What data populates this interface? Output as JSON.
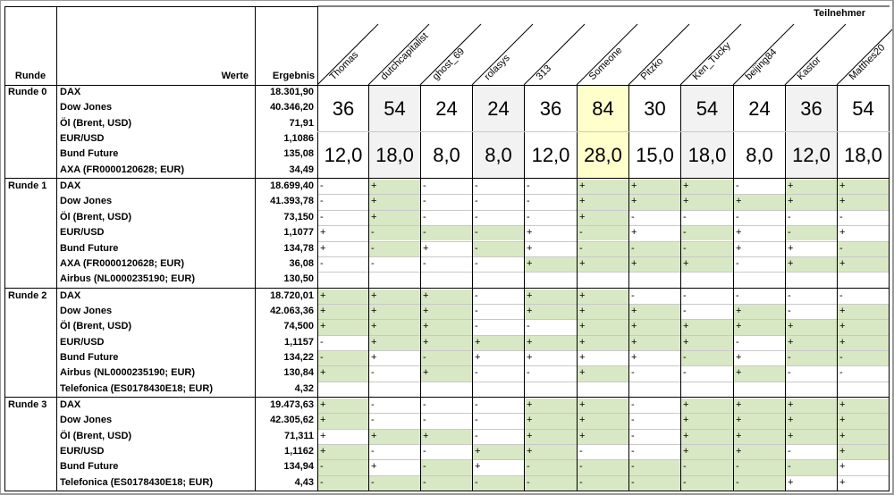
{
  "header": {
    "runde": "Runde",
    "werte": "Werte",
    "ergebnis": "Ergebnis",
    "teilnehmer": "Teilnehmer"
  },
  "participants": [
    "Thomas",
    "dutchcapitalist",
    "ghost_69",
    "rolasys",
    "313",
    "Someone",
    "Pitzko",
    "Ken_Tucky",
    "beijing84",
    "Kastor",
    "Matthes20"
  ],
  "colors": {
    "positive": "#d9e8c4",
    "highlight": "#ffffcc",
    "shaded": "#f2f2f2",
    "border": "#000000",
    "grid": "#c8c8c8"
  },
  "round0": {
    "label": "Runde 0",
    "rows": [
      {
        "name": "DAX",
        "value": "18.301,90"
      },
      {
        "name": "Dow Jones",
        "value": "40.346,20"
      },
      {
        "name": "Öl (Brent, USD)",
        "value": "71,91"
      },
      {
        "name": "EUR/USD",
        "value": "1,1086"
      },
      {
        "name": "Bund Future",
        "value": "135,08"
      },
      {
        "name": "AXA (FR0000120628; EUR)",
        "value": "34,49"
      }
    ],
    "points": [
      "36",
      "54",
      "24",
      "24",
      "36",
      "84",
      "30",
      "54",
      "24",
      "36",
      "54"
    ],
    "scores": [
      "12,0",
      "18,0",
      "8,0",
      "8,0",
      "12,0",
      "28,0",
      "15,0",
      "18,0",
      "8,0",
      "12,0",
      "18,0"
    ]
  },
  "rounds": [
    {
      "label": "Runde 1",
      "rows": [
        {
          "name": "DAX",
          "value": "18.699,40",
          "marks": [
            "-",
            "+",
            "-",
            "-",
            "-",
            "+",
            "+",
            "+",
            "-",
            "+",
            "+"
          ],
          "green": [
            0,
            1,
            0,
            0,
            0,
            1,
            1,
            1,
            0,
            1,
            1
          ]
        },
        {
          "name": "Dow Jones",
          "value": "41.393,78",
          "marks": [
            "-",
            "+",
            "-",
            "-",
            "-",
            "+",
            "+",
            "+",
            "+",
            "+",
            "+"
          ],
          "green": [
            0,
            1,
            0,
            0,
            0,
            1,
            1,
            1,
            1,
            1,
            1
          ]
        },
        {
          "name": "Öl (Brent, USD)",
          "value": "73,150",
          "marks": [
            "-",
            "+",
            "-",
            "-",
            "-",
            "+",
            "-",
            "-",
            "-",
            "-",
            "-"
          ],
          "green": [
            0,
            1,
            0,
            0,
            0,
            1,
            0,
            0,
            0,
            0,
            0
          ]
        },
        {
          "name": "EUR/USD",
          "value": "1,1077",
          "marks": [
            "+",
            "-",
            "-",
            "-",
            "+",
            "-",
            "+",
            "-",
            "+",
            "-",
            "+"
          ],
          "green": [
            0,
            1,
            1,
            1,
            0,
            1,
            0,
            1,
            0,
            1,
            0
          ]
        },
        {
          "name": "Bund Future",
          "value": "134,78",
          "marks": [
            "+",
            "-",
            "+",
            "-",
            "+",
            "-",
            "-",
            "-",
            "+",
            "+",
            "-"
          ],
          "green": [
            0,
            1,
            0,
            1,
            0,
            1,
            1,
            1,
            0,
            0,
            1
          ]
        },
        {
          "name": "AXA (FR0000120628; EUR)",
          "value": "36,08",
          "marks": [
            "-",
            "-",
            "-",
            "-",
            "+",
            "+",
            "+",
            "+",
            "-",
            "+",
            "+"
          ],
          "green": [
            0,
            0,
            0,
            0,
            1,
            1,
            1,
            1,
            0,
            1,
            1
          ]
        },
        {
          "name": "Airbus (NL0000235190; EUR)",
          "value": "130,50",
          "marks": null
        }
      ]
    },
    {
      "label": "Runde 2",
      "rows": [
        {
          "name": "DAX",
          "value": "18.720,01",
          "marks": [
            "+",
            "+",
            "+",
            "-",
            "+",
            "+",
            "-",
            "-",
            "-",
            "-",
            "-"
          ],
          "green": [
            1,
            1,
            1,
            0,
            1,
            1,
            0,
            0,
            0,
            0,
            0
          ]
        },
        {
          "name": "Dow Jones",
          "value": "42.063,36",
          "marks": [
            "+",
            "+",
            "+",
            "-",
            "+",
            "+",
            "+",
            "-",
            "+",
            "-",
            "+"
          ],
          "green": [
            1,
            1,
            1,
            0,
            1,
            1,
            1,
            0,
            1,
            0,
            1
          ]
        },
        {
          "name": "Öl (Brent, USD)",
          "value": "74,500",
          "marks": [
            "+",
            "+",
            "+",
            "-",
            "-",
            "+",
            "+",
            "+",
            "+",
            "+",
            "+"
          ],
          "green": [
            1,
            1,
            1,
            0,
            0,
            1,
            1,
            1,
            1,
            1,
            1
          ]
        },
        {
          "name": "EUR/USD",
          "value": "1,1157",
          "marks": [
            "-",
            "+",
            "+",
            "+",
            "+",
            "+",
            "+",
            "+",
            "-",
            "+",
            "+"
          ],
          "green": [
            0,
            1,
            1,
            1,
            1,
            1,
            1,
            1,
            0,
            1,
            1
          ]
        },
        {
          "name": "Bund Future",
          "value": "134,22",
          "marks": [
            "-",
            "+",
            "-",
            "+",
            "+",
            "+",
            "+",
            "-",
            "+",
            "-",
            "-"
          ],
          "green": [
            1,
            0,
            1,
            0,
            0,
            0,
            0,
            1,
            0,
            1,
            1
          ]
        },
        {
          "name": "Airbus (NL0000235190; EUR)",
          "value": "130,84",
          "marks": [
            "+",
            "-",
            "+",
            "-",
            "-",
            "+",
            "-",
            "-",
            "+",
            "-",
            "-"
          ],
          "green": [
            1,
            0,
            1,
            0,
            0,
            1,
            0,
            0,
            1,
            0,
            0
          ]
        },
        {
          "name": "Telefonica (ES0178430E18; EUR)",
          "value": "4,32",
          "marks": null
        }
      ]
    },
    {
      "label": "Runde 3",
      "rows": [
        {
          "name": "DAX",
          "value": "19.473,63",
          "marks": [
            "+",
            "-",
            "-",
            "-",
            "+",
            "+",
            "-",
            "+",
            "+",
            "+",
            "+"
          ],
          "green": [
            1,
            0,
            0,
            0,
            1,
            1,
            0,
            1,
            1,
            1,
            1
          ]
        },
        {
          "name": "Dow Jones",
          "value": "42.305,62",
          "marks": [
            "+",
            "-",
            "-",
            "-",
            "+",
            "+",
            "-",
            "+",
            "+",
            "+",
            "+"
          ],
          "green": [
            1,
            0,
            0,
            0,
            1,
            1,
            0,
            1,
            1,
            1,
            1
          ]
        },
        {
          "name": "Öl (Brent, USD)",
          "value": "71,311",
          "marks": [
            "+",
            "+",
            "+",
            "-",
            "+",
            "+",
            "-",
            "+",
            "+",
            "+",
            "+"
          ],
          "green": [
            0,
            1,
            1,
            0,
            1,
            1,
            0,
            1,
            1,
            1,
            1
          ]
        },
        {
          "name": "EUR/USD",
          "value": "1,1162",
          "marks": [
            "+",
            "-",
            "-",
            "+",
            "+",
            "-",
            "-",
            "+",
            "+",
            "-",
            "+"
          ],
          "green": [
            1,
            0,
            0,
            1,
            1,
            0,
            0,
            1,
            1,
            0,
            1
          ]
        },
        {
          "name": "Bund Future",
          "value": "134,94",
          "marks": [
            "-",
            "+",
            "-",
            "+",
            "-",
            "-",
            "-",
            "-",
            "-",
            "-",
            "+"
          ],
          "green": [
            1,
            0,
            1,
            0,
            1,
            1,
            1,
            1,
            1,
            1,
            0
          ]
        },
        {
          "name": "Telefonica (ES0178430E18; EUR)",
          "value": "4,43",
          "marks": [
            "-",
            "-",
            "-",
            "-",
            "-",
            "-",
            "-",
            "-",
            "-",
            "+",
            "+"
          ],
          "green": [
            1,
            1,
            1,
            1,
            1,
            1,
            1,
            1,
            1,
            0,
            0
          ]
        }
      ]
    }
  ]
}
